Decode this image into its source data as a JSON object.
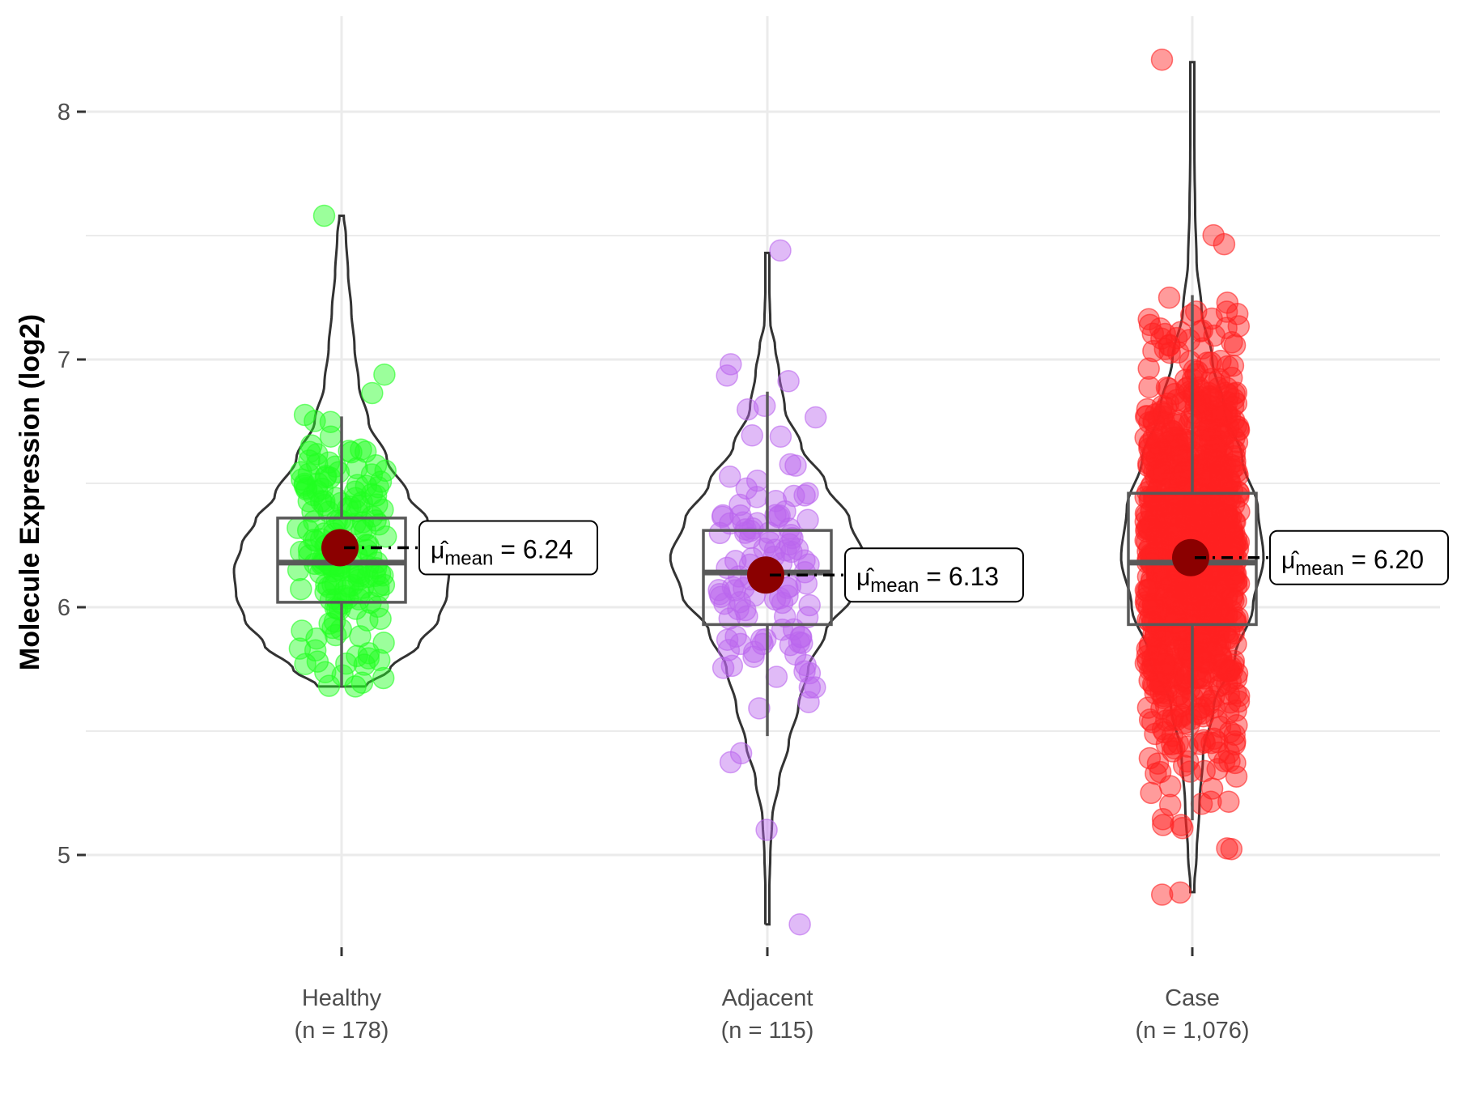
{
  "chart_data": {
    "type": "violin",
    "title": "",
    "xlabel": "",
    "ylabel": "Molecule Expression (log2)",
    "ylim": [
      4.6,
      8.4
    ],
    "yticks": [
      5,
      6,
      7,
      8
    ],
    "ytick_labels": [
      "5",
      "6",
      "7",
      "8"
    ],
    "grid": true,
    "legend": "none",
    "mean_label_prefix": "μ̂",
    "mean_label_subscript": "mean",
    "groups": [
      {
        "name": "Healthy",
        "n_label": "(n = 178)",
        "n": 178,
        "color": "#22ff22",
        "mean": 6.24,
        "mean_label": "6.24",
        "box": {
          "q1": 6.02,
          "median": 6.18,
          "q3": 6.36,
          "whisker_low": 5.68,
          "whisker_high": 6.77
        },
        "violin": {
          "min": 5.68,
          "max": 7.58,
          "profile": [
            [
              5.68,
              0.22
            ],
            [
              5.75,
              0.45
            ],
            [
              5.85,
              0.72
            ],
            [
              5.95,
              0.9
            ],
            [
              6.05,
              0.98
            ],
            [
              6.15,
              1.0
            ],
            [
              6.25,
              0.93
            ],
            [
              6.35,
              0.8
            ],
            [
              6.45,
              0.62
            ],
            [
              6.6,
              0.42
            ],
            [
              6.75,
              0.25
            ],
            [
              6.9,
              0.16
            ],
            [
              7.05,
              0.12
            ],
            [
              7.2,
              0.09
            ],
            [
              7.35,
              0.06
            ],
            [
              7.5,
              0.04
            ],
            [
              7.58,
              0.02
            ]
          ]
        },
        "points_range": [
          5.68,
          7.58
        ]
      },
      {
        "name": "Adjacent",
        "n_label": "(n = 115)",
        "n": 115,
        "color": "#bb66ee",
        "mean": 6.13,
        "mean_label": "6.13",
        "box": {
          "q1": 5.93,
          "median": 6.14,
          "q3": 6.31,
          "whisker_low": 5.48,
          "whisker_high": 6.87
        },
        "violin": {
          "min": 4.72,
          "max": 7.43,
          "profile": [
            [
              4.72,
              0.02
            ],
            [
              4.85,
              0.02
            ],
            [
              5.0,
              0.03
            ],
            [
              5.15,
              0.05
            ],
            [
              5.3,
              0.12
            ],
            [
              5.45,
              0.22
            ],
            [
              5.6,
              0.32
            ],
            [
              5.75,
              0.42
            ],
            [
              5.9,
              0.6
            ],
            [
              6.05,
              0.88
            ],
            [
              6.2,
              1.0
            ],
            [
              6.35,
              0.85
            ],
            [
              6.5,
              0.6
            ],
            [
              6.65,
              0.35
            ],
            [
              6.8,
              0.18
            ],
            [
              6.95,
              0.12
            ],
            [
              7.05,
              0.08
            ],
            [
              7.15,
              0.03
            ],
            [
              7.3,
              0.02
            ],
            [
              7.43,
              0.02
            ]
          ]
        },
        "points_range": [
          4.72,
          7.44
        ]
      },
      {
        "name": "Case",
        "n_label": "(n = 1,076)",
        "n": 1076,
        "color": "#ff2222",
        "mean": 6.2,
        "mean_label": "6.20",
        "box": {
          "q1": 5.93,
          "median": 6.18,
          "q3": 6.46,
          "whisker_low": 5.14,
          "whisker_high": 7.26
        },
        "violin": {
          "min": 4.85,
          "max": 8.2,
          "profile": [
            [
              4.85,
              0.02
            ],
            [
              5.0,
              0.06
            ],
            [
              5.2,
              0.1
            ],
            [
              5.4,
              0.15
            ],
            [
              5.6,
              0.3
            ],
            [
              5.8,
              0.6
            ],
            [
              6.0,
              0.85
            ],
            [
              6.2,
              1.0
            ],
            [
              6.4,
              0.92
            ],
            [
              6.6,
              0.7
            ],
            [
              6.8,
              0.45
            ],
            [
              7.0,
              0.28
            ],
            [
              7.2,
              0.13
            ],
            [
              7.4,
              0.06
            ],
            [
              7.6,
              0.04
            ],
            [
              7.8,
              0.03
            ],
            [
              8.0,
              0.02
            ],
            [
              8.2,
              0.01
            ]
          ]
        },
        "points_range": [
          4.84,
          8.21
        ]
      }
    ]
  }
}
